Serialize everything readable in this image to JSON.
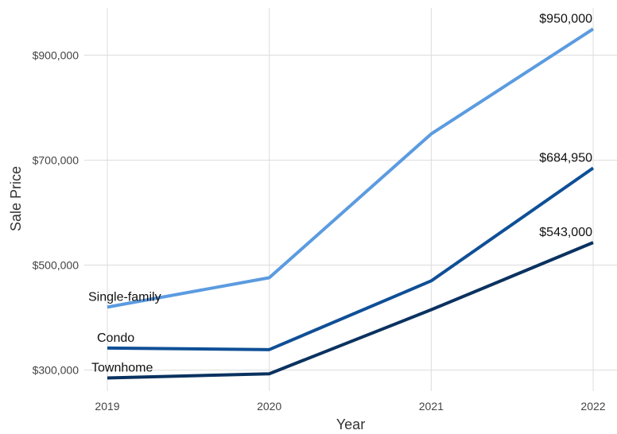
{
  "chart_data": {
    "type": "line",
    "title": "",
    "xlabel": "Year",
    "ylabel": "Sale Price",
    "x": [
      "2019",
      "2020",
      "2021",
      "2022"
    ],
    "ylim": [
      260000,
      990000
    ],
    "yticks": [
      300000,
      500000,
      700000,
      900000
    ],
    "ytick_labels": [
      "$300,000",
      "$500,000",
      "$700,000",
      "$900,000"
    ],
    "grid": true,
    "legend": "none",
    "series": [
      {
        "name": "Single-family",
        "values": [
          420000,
          476000,
          750000,
          950000
        ],
        "color": "#5b9be0",
        "end_label": "$950,000"
      },
      {
        "name": "Condo",
        "values": [
          342000,
          339000,
          470000,
          684950
        ],
        "color": "#0f4f96",
        "end_label": "$684,950"
      },
      {
        "name": "Townhome",
        "values": [
          285000,
          293000,
          415000,
          543000
        ],
        "color": "#0a3260",
        "end_label": "$543,000"
      }
    ]
  }
}
